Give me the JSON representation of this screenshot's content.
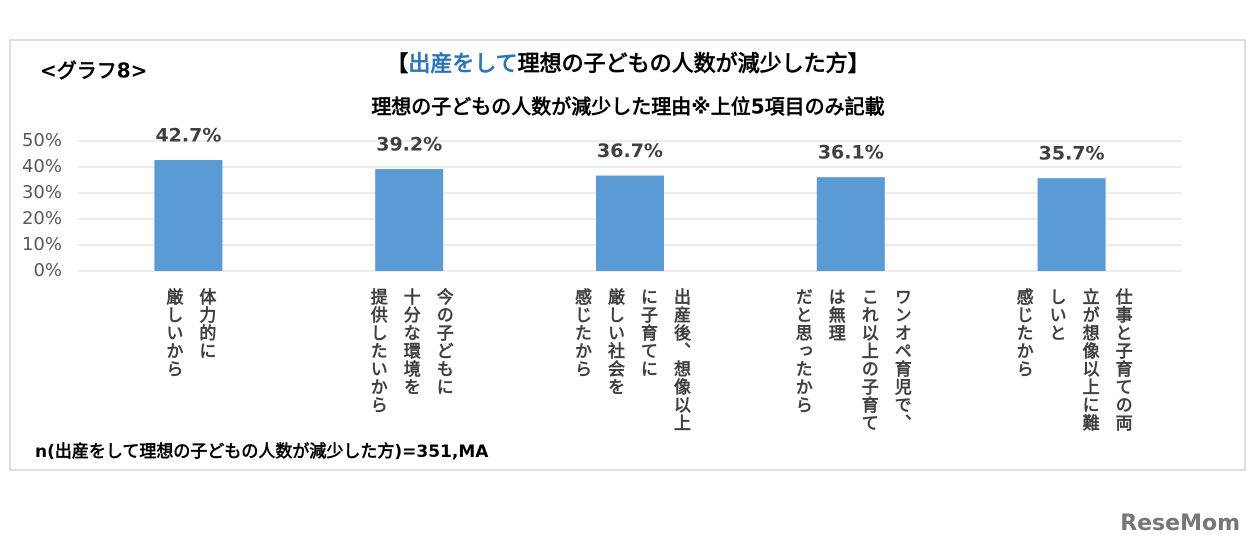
{
  "chart_data": {
    "type": "bar",
    "tag": "<グラフ8>",
    "title_parts": [
      "【",
      "出産をして",
      "理想の子どもの人数が減少した方】"
    ],
    "subtitle": "理想の子どもの人数が減少した理由※上位5項目のみ記載",
    "categories": [
      "体力的に\n厳しいから",
      "今の子どもに\n十分な環境を\n提供したいから",
      "出産後、想像以上\nに子育てに\n厳しい社会を\n感じたから",
      "ワンオペ育児で、\nこれ以上の子育て\nは無理\nだと思ったから",
      "仕事と子育ての両\n立が想像以上に難\nしいと\n感じたから"
    ],
    "values": [
      42.7,
      39.2,
      36.7,
      36.1,
      35.7
    ],
    "value_labels": [
      "42.7%",
      "39.2%",
      "36.7%",
      "36.1%",
      "35.7%"
    ],
    "color": "#5b9bd5",
    "title_highlight_color": "#2e75b6",
    "ylim": [
      0,
      50
    ],
    "yticks": [
      {
        "value": 0,
        "label": "0%"
      },
      {
        "value": 10,
        "label": "10%"
      },
      {
        "value": 20,
        "label": "20%"
      },
      {
        "value": 30,
        "label": "30%"
      },
      {
        "value": 40,
        "label": "40%"
      },
      {
        "value": 50,
        "label": "50%"
      }
    ],
    "grid": true,
    "note": "n(出産をして理想の子どもの人数が減少した方)=351,MA",
    "watermark": "ReseMom"
  }
}
